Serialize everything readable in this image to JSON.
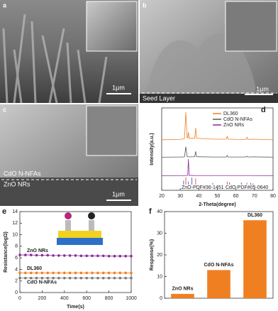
{
  "images": [
    {
      "panel_label": "a",
      "texts": [
        "1μm"
      ]
    },
    {
      "panel_label": "b",
      "texts": [
        "Seed Layer",
        "1μm"
      ]
    },
    {
      "panel_label": "c",
      "texts": [
        "CdO N-NFAs",
        "ZnO NRs",
        "1μm"
      ]
    }
  ],
  "chart_data": [
    {
      "panel_label": "d",
      "type": "spectrum",
      "xlabel": "2-Theta(degree)",
      "ylabel": "Intensity(a.u.)",
      "xlim": [
        20,
        80
      ],
      "xticks": [
        20,
        30,
        40,
        50,
        60,
        70,
        80
      ],
      "x": [
        20,
        30,
        31.8,
        32.3,
        33,
        33.7,
        34,
        34.4,
        34.8,
        36.3,
        37.8,
        38.3,
        38.8,
        47.5,
        54.8,
        55.3,
        55.8,
        56.6,
        62.9,
        65.4,
        65.9,
        66.4,
        69.3,
        80
      ],
      "series": [
        {
          "name": "DL360",
          "color": "#f07f22",
          "values": [
            3,
            4,
            6,
            8,
            100,
            10,
            9,
            30,
            8,
            8,
            8,
            45,
            8,
            5,
            5,
            15,
            5,
            5,
            4,
            4,
            12,
            4,
            5,
            3
          ]
        },
        {
          "name": "CdO N-NFAs",
          "color": "#555555",
          "values": [
            3,
            4,
            4,
            6,
            70,
            8,
            5,
            5,
            5,
            5,
            6,
            40,
            6,
            4,
            4,
            14,
            4,
            4,
            4,
            4,
            10,
            4,
            5,
            3
          ]
        },
        {
          "name": "ZnO NRs",
          "color": "#8b2a9a",
          "values": [
            2,
            3,
            3,
            3,
            3,
            3,
            5,
            100,
            4,
            4,
            3,
            3,
            3,
            3,
            3,
            3,
            3,
            3,
            3,
            3,
            3,
            3,
            3,
            2
          ]
        }
      ],
      "references": [
        {
          "name": "ZnO-PDF#36-1451",
          "color": "#3a3ad0",
          "x": [
            31.8,
            34.4,
            36.3,
            47.5,
            56.6,
            62.9,
            68,
            69.1
          ],
          "values": [
            57,
            44,
            100,
            23,
            32,
            29,
            23,
            11
          ]
        },
        {
          "name": "CdO-PDF#05-0640",
          "color": "#e03030",
          "x": [
            33,
            38.3,
            55.3,
            65.9,
            69.3
          ],
          "values": [
            100,
            88,
            43,
            28,
            14
          ]
        }
      ]
    },
    {
      "panel_label": "e",
      "type": "line",
      "xlabel": "Time(s)",
      "ylabel": "Resistance(logΩ)",
      "xlim": [
        0,
        1000
      ],
      "xticks": [
        0,
        200,
        400,
        600,
        800,
        1000
      ],
      "ylim": [
        0,
        14
      ],
      "yticks": [
        0,
        2,
        4,
        6,
        8,
        10,
        12,
        14
      ],
      "x": [
        0,
        50,
        100,
        150,
        200,
        250,
        300,
        350,
        400,
        450,
        500,
        550,
        600,
        650,
        700,
        750,
        800,
        850,
        900,
        950,
        1000
      ],
      "series": [
        {
          "name": "ZnO NRs",
          "color": "#8b2a9a",
          "values": [
            6.5,
            6.5,
            6.5,
            6.45,
            6.45,
            6.45,
            6.4,
            6.4,
            6.4,
            6.4,
            6.4,
            6.35,
            6.35,
            6.35,
            6.35,
            6.35,
            6.3,
            6.3,
            6.3,
            6.3,
            6.3
          ]
        },
        {
          "name": "DL360",
          "color": "#f07f22",
          "values": [
            3.4,
            3.4,
            3.4,
            3.4,
            3.4,
            3.4,
            3.4,
            3.4,
            3.4,
            3.4,
            3.4,
            3.4,
            3.4,
            3.4,
            3.4,
            3.4,
            3.4,
            3.4,
            3.4,
            3.4,
            3.4
          ]
        },
        {
          "name": "CdO N-NFAs",
          "color": "#777777",
          "values": [
            2.5,
            2.5,
            2.5,
            2.5,
            2.5,
            2.5,
            2.5,
            2.5,
            2.5,
            2.5,
            2.5,
            2.5,
            2.5,
            2.5,
            2.5,
            2.5,
            2.5,
            2.5,
            2.5,
            2.5,
            2.5
          ]
        }
      ]
    },
    {
      "panel_label": "f",
      "type": "bar",
      "ylabel": "Response(%)",
      "categories": [
        "ZnO NRs",
        "CdO N-NFAs",
        "DL360"
      ],
      "values": [
        2,
        13,
        36
      ],
      "color": "#f07f22",
      "ylim": [
        0,
        40
      ],
      "yticks": [
        0,
        10,
        20,
        30,
        40
      ]
    }
  ]
}
